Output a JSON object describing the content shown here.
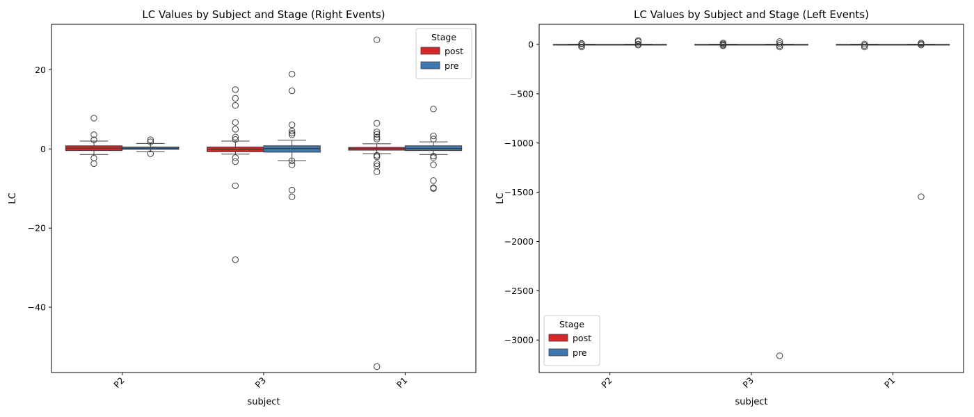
{
  "chart_data": [
    {
      "type": "box",
      "title": "LC Values by Subject and Stage (Right Events)",
      "xlabel": "subject",
      "ylabel": "LC",
      "categories": [
        "P2",
        "P3",
        "P1"
      ],
      "ylim": [
        -56.5,
        31.5
      ],
      "yticks": [
        -40,
        -20,
        0,
        20
      ],
      "ytick_labels": [
        "−40",
        "−20",
        "0",
        "20"
      ],
      "legend": {
        "title": "Stage",
        "position": "top-right",
        "entries": [
          "post",
          "pre"
        ]
      },
      "series": [
        {
          "name": "post",
          "color": "#d62728",
          "boxes": [
            {
              "category": "P2",
              "q1": -0.4,
              "median": 0.2,
              "q3": 0.8,
              "whisker_low": -1.4,
              "whisker_high": 2.0,
              "outliers": [
                7.8,
                3.6,
                2.3,
                -2.3,
                -3.7
              ]
            },
            {
              "category": "P3",
              "q1": -0.7,
              "median": -0.1,
              "q3": 0.5,
              "whisker_low": -1.3,
              "whisker_high": 2.0,
              "outliers": [
                15.0,
                12.8,
                11.0,
                6.7,
                5.0,
                3.0,
                2.4,
                -2.2,
                -3.2,
                -9.3,
                -28.0
              ]
            },
            {
              "category": "P1",
              "q1": -0.3,
              "median": 0.1,
              "q3": 0.4,
              "whisker_low": -1.2,
              "whisker_high": 1.3,
              "outliers": [
                27.6,
                6.5,
                4.3,
                3.7,
                3.0,
                2.5,
                -1.6,
                -2.0,
                -3.7,
                -4.3,
                -5.8,
                -55.0
              ]
            }
          ]
        },
        {
          "name": "pre",
          "color": "#3f78b0",
          "boxes": [
            {
              "category": "P2",
              "q1": -0.1,
              "median": 0.2,
              "q3": 0.5,
              "whisker_low": -0.7,
              "whisker_high": 1.4,
              "outliers": [
                2.3,
                1.8,
                -1.2
              ]
            },
            {
              "category": "P3",
              "q1": -0.8,
              "median": 0.1,
              "q3": 0.8,
              "whisker_low": -3.0,
              "whisker_high": 2.2,
              "outliers": [
                18.9,
                14.7,
                6.1,
                4.5,
                4.0,
                3.6,
                -3.0,
                -4.0,
                -10.4,
                -12.1
              ]
            },
            {
              "category": "P1",
              "q1": -0.4,
              "median": 0.1,
              "q3": 0.8,
              "whisker_low": -1.4,
              "whisker_high": 1.8,
              "outliers": [
                10.1,
                3.3,
                2.5,
                -1.8,
                -2.2,
                -4.0,
                -8.0,
                -9.8,
                -10.0
              ]
            }
          ]
        }
      ]
    },
    {
      "type": "box",
      "title": "LC Values by Subject and Stage (Left Events)",
      "xlabel": "subject",
      "ylabel": "LC",
      "categories": [
        "P2",
        "P3",
        "P1"
      ],
      "ylim": [
        -3330,
        205
      ],
      "yticks": [
        -3000,
        -2500,
        -2000,
        -1500,
        -1000,
        -500,
        0
      ],
      "ytick_labels": [
        "−3000",
        "−2500",
        "−2000",
        "−1500",
        "−1000",
        "−500",
        "0"
      ],
      "legend": {
        "title": "Stage",
        "position": "bottom-left",
        "entries": [
          "post",
          "pre"
        ]
      },
      "series": [
        {
          "name": "post",
          "color": "#d62728",
          "boxes": [
            {
              "category": "P2",
              "q1": -2,
              "median": 0,
              "q3": 2,
              "whisker_low": -4,
              "whisker_high": 4,
              "outliers": [
                10,
                5,
                -10,
                -25
              ]
            },
            {
              "category": "P3",
              "q1": -2,
              "median": 0,
              "q3": 2,
              "whisker_low": -4,
              "whisker_high": 4,
              "outliers": [
                15,
                5,
                -5,
                -12
              ]
            },
            {
              "category": "P1",
              "q1": -2,
              "median": 0,
              "q3": 2,
              "whisker_low": -4,
              "whisker_high": 4,
              "outliers": [
                5,
                -10,
                -25
              ]
            }
          ]
        },
        {
          "name": "pre",
          "color": "#3f78b0",
          "boxes": [
            {
              "category": "P2",
              "q1": -2,
              "median": 0,
              "q3": 2,
              "whisker_low": -4,
              "whisker_high": 4,
              "outliers": [
                40,
                30,
                5,
                -5
              ]
            },
            {
              "category": "P3",
              "q1": -2,
              "median": 0,
              "q3": 2,
              "whisker_low": -4,
              "whisker_high": 4,
              "outliers": [
                30,
                10,
                -10,
                -25,
                -3160
              ]
            },
            {
              "category": "P1",
              "q1": -2,
              "median": 0,
              "q3": 2,
              "whisker_low": -4,
              "whisker_high": 4,
              "outliers": [
                15,
                5,
                -5,
                -1545
              ]
            }
          ]
        }
      ]
    }
  ]
}
